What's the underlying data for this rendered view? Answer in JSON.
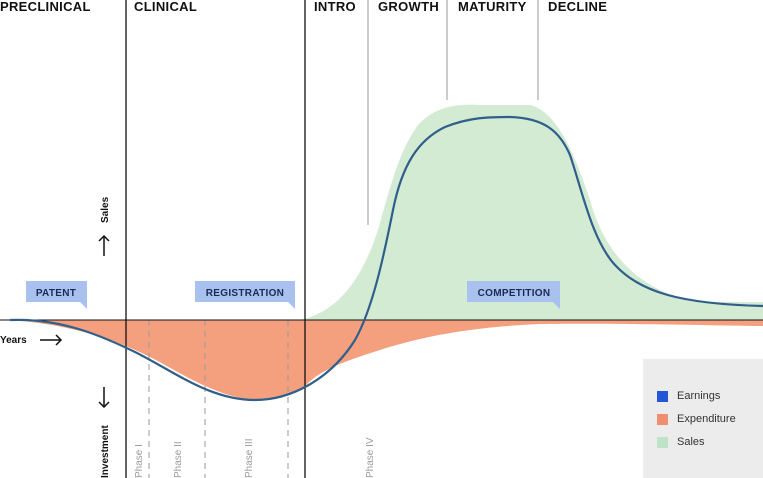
{
  "stages": [
    "PRECLINICAL",
    "CLINICAL",
    "INTRO",
    "GROWTH",
    "MATURITY",
    "DECLINE"
  ],
  "phases": [
    "Phase I",
    "Phase II",
    "Phase III",
    "Phase IV"
  ],
  "tags": [
    "PATENT",
    "REGISTRATION",
    "COMPETITION"
  ],
  "axis": {
    "sales": "Sales",
    "investment": "Investment",
    "years": "Years"
  },
  "legend": [
    {
      "label": "Earnings",
      "color": "#2457d6"
    },
    {
      "label": "Expenditure",
      "color": "#ef8f72"
    },
    {
      "label": "Sales",
      "color": "#bfe2c8"
    }
  ],
  "colors": {
    "sales_fill": "#d3ead3",
    "expenditure_fill": "#f4a07f",
    "earnings_line": "#2f5f8a",
    "tag_bg": "#a9c1ee"
  }
}
